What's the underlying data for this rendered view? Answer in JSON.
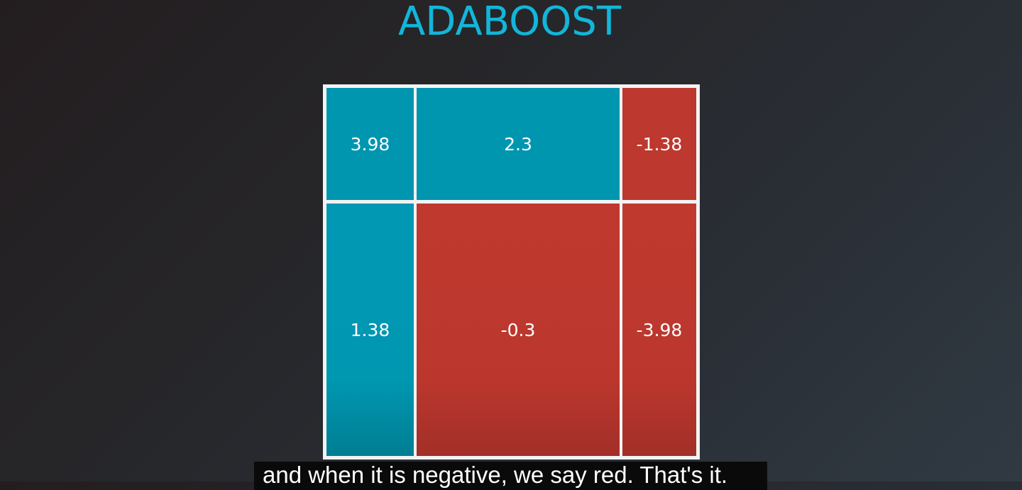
{
  "title": "ADABOOST",
  "grid": {
    "rows": [
      [
        {
          "value": "3.98",
          "color": "blue"
        },
        {
          "value": "2.3",
          "color": "blue"
        },
        {
          "value": "-1.38",
          "color": "red"
        }
      ],
      [
        {
          "value": "1.38",
          "color": "blue"
        },
        {
          "value": "-0.3",
          "color": "red"
        },
        {
          "value": "-3.98",
          "color": "red"
        }
      ]
    ]
  },
  "colors": {
    "title": "#12b6d9",
    "positive_blue": "#0096b0",
    "negative_red": "#bd382e",
    "grid_lines": "#f3f3f3"
  },
  "caption": "and when it is negative, we say red. That's it."
}
